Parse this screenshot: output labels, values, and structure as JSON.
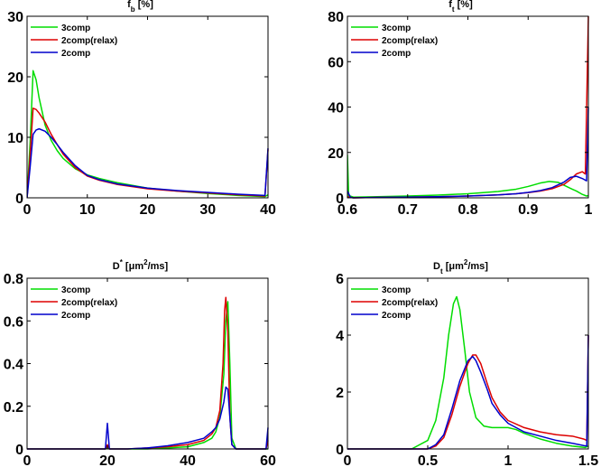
{
  "chart_data": [
    {
      "type": "line",
      "title": {
        "main": "f",
        "sub": "b",
        "tail": " [%]"
      },
      "xlabel": "",
      "ylabel": "",
      "xlim": [
        0,
        40
      ],
      "ylim": [
        0,
        30
      ],
      "xticks": [
        0,
        10,
        20,
        30,
        40
      ],
      "yticks": [
        0,
        10,
        20,
        30
      ],
      "legend": "top-left",
      "series": [
        {
          "name": "3comp",
          "color": "#00dd00",
          "x": [
            0,
            0.5,
            1,
            1.5,
            2,
            3,
            4,
            5,
            6,
            8,
            10,
            12,
            15,
            20,
            25,
            30,
            35,
            39.5,
            40
          ],
          "y": [
            0,
            9,
            21,
            19.5,
            16.5,
            12,
            9.5,
            7.8,
            6.5,
            4.8,
            3.8,
            3.2,
            2.5,
            1.6,
            1.1,
            0.7,
            0.4,
            0.2,
            0.5
          ]
        },
        {
          "name": "2comp(relax)",
          "color": "#dd0000",
          "x": [
            0,
            0.5,
            1,
            1.5,
            2,
            3,
            4,
            5,
            6,
            8,
            10,
            12,
            15,
            20,
            25,
            30,
            35,
            39.5,
            40
          ],
          "y": [
            0,
            7,
            14.8,
            14.6,
            14,
            12.5,
            10.5,
            8.8,
            7.2,
            5,
            3.6,
            2.9,
            2.2,
            1.5,
            1.1,
            0.8,
            0.5,
            0.3,
            8
          ]
        },
        {
          "name": "2comp",
          "color": "#0000cc",
          "x": [
            0,
            0.5,
            1,
            1.5,
            2,
            3,
            4,
            5,
            6,
            8,
            10,
            12,
            15,
            20,
            25,
            30,
            35,
            39.5,
            40
          ],
          "y": [
            0,
            5,
            10.5,
            11.2,
            11.4,
            11,
            10,
            8.8,
            7.5,
            5.3,
            3.7,
            3,
            2.3,
            1.6,
            1.2,
            0.9,
            0.6,
            0.4,
            8.2
          ]
        }
      ]
    },
    {
      "type": "line",
      "title": {
        "main": "f",
        "sub": "t",
        "tail": " [%]"
      },
      "xlabel": "",
      "ylabel": "",
      "xlim": [
        0.6,
        1
      ],
      "ylim": [
        0,
        80
      ],
      "xticks": [
        0.6,
        0.7,
        0.8,
        0.9,
        1
      ],
      "yticks": [
        0,
        20,
        40,
        60,
        80
      ],
      "legend": "top-left",
      "series": [
        {
          "name": "3comp",
          "color": "#00dd00",
          "x": [
            0.6,
            0.602,
            0.61,
            0.65,
            0.7,
            0.75,
            0.8,
            0.85,
            0.88,
            0.9,
            0.92,
            0.935,
            0.95,
            0.96,
            0.97,
            0.98,
            0.99,
            0.997,
            1
          ],
          "y": [
            19,
            1,
            0.3,
            0.5,
            0.8,
            1.2,
            1.8,
            2.8,
            3.8,
            5,
            6.5,
            7.2,
            6.8,
            5.5,
            4.2,
            3,
            1.5,
            0.8,
            1
          ]
        },
        {
          "name": "2comp(relax)",
          "color": "#dd0000",
          "x": [
            0.6,
            0.605,
            0.61,
            0.65,
            0.7,
            0.75,
            0.8,
            0.85,
            0.88,
            0.9,
            0.92,
            0.94,
            0.96,
            0.97,
            0.98,
            0.99,
            0.995,
            1
          ],
          "y": [
            0.5,
            0.2,
            0,
            0.2,
            0.3,
            0.5,
            0.8,
            1.3,
            1.8,
            2.3,
            3,
            4,
            6,
            8,
            10.5,
            11.5,
            10.5,
            80
          ]
        },
        {
          "name": "2comp",
          "color": "#0000cc",
          "x": [
            0.6,
            0.605,
            0.61,
            0.65,
            0.7,
            0.75,
            0.8,
            0.85,
            0.88,
            0.9,
            0.92,
            0.94,
            0.96,
            0.97,
            0.98,
            0.99,
            0.997,
            1
          ],
          "y": [
            3,
            0.2,
            0,
            0.2,
            0.3,
            0.5,
            0.8,
            1.3,
            1.8,
            2.4,
            3.2,
            4.5,
            7,
            9,
            9.5,
            8.5,
            7.5,
            40
          ]
        }
      ]
    },
    {
      "type": "line",
      "title": {
        "main": "D",
        "sup": "*",
        "tail": " [μm",
        "sup2": "2",
        "tail2": "/ms]"
      },
      "xlabel": "",
      "ylabel": "",
      "xlim": [
        0,
        60
      ],
      "ylim": [
        0,
        0.8
      ],
      "xticks": [
        0,
        20,
        40,
        60
      ],
      "yticks": [
        0,
        0.2,
        0.4,
        0.6,
        0.8
      ],
      "legend": "top-right",
      "series": [
        {
          "name": "3comp",
          "color": "#00dd00",
          "x": [
            0,
            19.5,
            20,
            20.5,
            25,
            30,
            35,
            40,
            44,
            46,
            47,
            48,
            49,
            49.5,
            50,
            50.5,
            51,
            52,
            55,
            59.5,
            60
          ],
          "y": [
            0,
            0,
            0.01,
            0,
            0,
            0,
            0.005,
            0.01,
            0.03,
            0.05,
            0.08,
            0.15,
            0.35,
            0.6,
            0.69,
            0.4,
            0.05,
            0,
            0,
            0,
            0
          ]
        },
        {
          "name": "2comp(relax)",
          "color": "#dd0000",
          "x": [
            0,
            19.5,
            20,
            20.5,
            25,
            30,
            35,
            40,
            44,
            46,
            47,
            48,
            48.8,
            49.2,
            49.5,
            50,
            50.5,
            51,
            52,
            55,
            59.5,
            60
          ],
          "y": [
            0,
            0,
            0.02,
            0,
            0,
            0.005,
            0.01,
            0.02,
            0.04,
            0.07,
            0.1,
            0.18,
            0.4,
            0.65,
            0.71,
            0.55,
            0.15,
            0.02,
            0,
            0,
            0,
            0.04
          ]
        },
        {
          "name": "2comp",
          "color": "#0000cc",
          "x": [
            0,
            19.5,
            20,
            20.5,
            25,
            30,
            35,
            40,
            44,
            46,
            47,
            48,
            49,
            49.5,
            50,
            50.5,
            51,
            52,
            55,
            59.5,
            60
          ],
          "y": [
            0,
            0,
            0.12,
            0,
            0,
            0.005,
            0.015,
            0.03,
            0.05,
            0.08,
            0.1,
            0.14,
            0.22,
            0.29,
            0.28,
            0.15,
            0.02,
            0,
            0,
            0,
            0.1
          ]
        }
      ]
    },
    {
      "type": "line",
      "title": {
        "main": "D",
        "sub": "t",
        "tail": " [μm",
        "sup2": "2",
        "tail2": "/ms]"
      },
      "xlabel": "",
      "ylabel": "",
      "xlim": [
        0,
        1.5
      ],
      "ylim": [
        0,
        6
      ],
      "xticks": [
        0,
        0.5,
        1,
        1.5
      ],
      "yticks": [
        0,
        2,
        4,
        6
      ],
      "legend": "top-left",
      "series": [
        {
          "name": "3comp",
          "color": "#00dd00",
          "x": [
            0,
            0.4,
            0.5,
            0.55,
            0.6,
            0.63,
            0.66,
            0.68,
            0.7,
            0.73,
            0.76,
            0.8,
            0.85,
            0.9,
            0.95,
            1,
            1.05,
            1.1,
            1.2,
            1.3,
            1.4,
            1.48,
            1.5
          ],
          "y": [
            0,
            0,
            0.3,
            1,
            2.5,
            4,
            5.1,
            5.35,
            4.9,
            3.5,
            2,
            1.1,
            0.8,
            0.75,
            0.75,
            0.75,
            0.68,
            0.55,
            0.35,
            0.2,
            0.1,
            0.05,
            0.1
          ]
        },
        {
          "name": "2comp(relax)",
          "color": "#dd0000",
          "x": [
            0,
            0.5,
            0.55,
            0.6,
            0.65,
            0.7,
            0.75,
            0.78,
            0.8,
            0.83,
            0.87,
            0.9,
            0.95,
            1,
            1.1,
            1.2,
            1.3,
            1.4,
            1.47,
            1.49,
            1.5
          ],
          "y": [
            0,
            0,
            0.1,
            0.4,
            1.2,
            2.2,
            3,
            3.3,
            3.3,
            3,
            2.3,
            1.8,
            1.3,
            1,
            0.75,
            0.6,
            0.5,
            0.45,
            0.35,
            0.3,
            4
          ]
        },
        {
          "name": "2comp",
          "color": "#0000cc",
          "x": [
            0,
            0.5,
            0.55,
            0.6,
            0.65,
            0.7,
            0.75,
            0.78,
            0.8,
            0.83,
            0.87,
            0.9,
            0.95,
            1,
            1.1,
            1.2,
            1.3,
            1.4,
            1.47,
            1.49,
            1.5
          ],
          "y": [
            0,
            0,
            0.15,
            0.5,
            1.4,
            2.4,
            3.1,
            3.25,
            3.1,
            2.7,
            2.1,
            1.6,
            1.2,
            0.9,
            0.6,
            0.45,
            0.3,
            0.2,
            0.12,
            0.1,
            4
          ]
        }
      ]
    }
  ]
}
